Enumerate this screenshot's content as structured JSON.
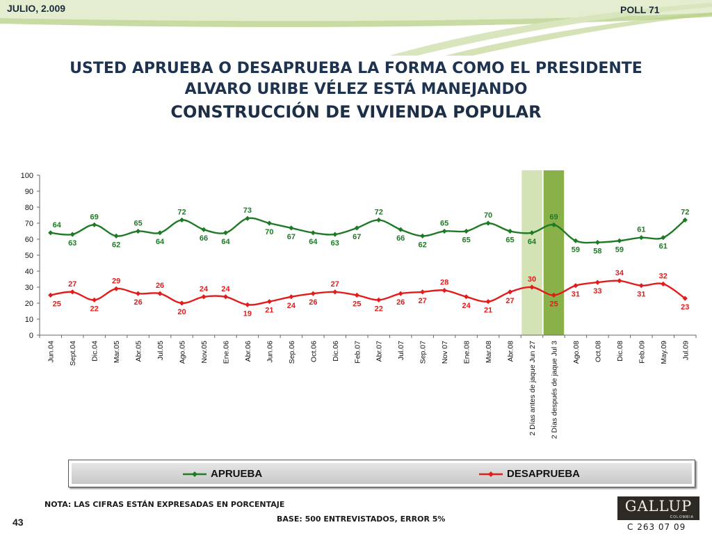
{
  "header": {
    "date": "JULIO, 2.009",
    "poll": "POLL 71"
  },
  "title": {
    "line1": "USTED APRUEBA O DESAPRUEBA LA FORMA COMO EL PRESIDENTE",
    "line2": "ALVARO URIBE VÉLEZ ESTÁ MANEJANDO",
    "line3": "CONSTRUCCIÓN DE VIVIENDA POPULAR"
  },
  "chart_data": {
    "type": "line",
    "categories": [
      "Jun.04",
      "Sept.04",
      "Dic.04",
      "Mar.05",
      "Abr.05",
      "Jul.05",
      "Ago.05",
      "Nov.05",
      "Ene.06",
      "Abr.06",
      "Jun.06",
      "Sep.06",
      "Oct.06",
      "Dic.06",
      "Feb.07",
      "Abr.07",
      "Jul.07",
      "Sep.07",
      "Nov 07",
      "Ene.08",
      "Mar.08",
      "Abr.08",
      "2 Días antes de jaque Jun 27",
      "2 Días después de jaque Jul 3",
      "Ago.08",
      "Oct.08",
      "Dic.08",
      "Feb.09",
      "May.09",
      "Jul.09"
    ],
    "ylim": [
      0,
      100
    ],
    "yticks": [
      0,
      10,
      20,
      30,
      40,
      50,
      60,
      70,
      80,
      90,
      100
    ],
    "series": [
      {
        "name": "APRUEBA",
        "color": "#1f7a25",
        "values": [
          64,
          63,
          69,
          62,
          65,
          64,
          72,
          66,
          64,
          73,
          70,
          67,
          64,
          63,
          67,
          72,
          66,
          62,
          65,
          65,
          70,
          65,
          64,
          69,
          59,
          58,
          59,
          61,
          61,
          72
        ]
      },
      {
        "name": "DESAPRUEBA",
        "color": "#e31b1b",
        "values": [
          25,
          27,
          22,
          29,
          26,
          26,
          20,
          24,
          24,
          19,
          21,
          24,
          26,
          27,
          25,
          22,
          26,
          27,
          28,
          24,
          21,
          27,
          30,
          25,
          31,
          33,
          34,
          31,
          32,
          23
        ]
      }
    ],
    "highlight": [
      {
        "category_index": 22,
        "color": "#d3e3b6"
      },
      {
        "category_index": 23,
        "color": "#8ab04a"
      }
    ],
    "legend": "bottom",
    "grid": false
  },
  "footer": {
    "note": "NOTA: LAS CIFRAS ESTÁN EXPRESADAS EN PORCENTAJE",
    "base": "BASE: 500 ENTREVISTADOS, ERROR 5%",
    "page": "43",
    "logo": "GALLUP",
    "logo_sub": "COLOMBIA",
    "code": "C 263 07 09"
  }
}
